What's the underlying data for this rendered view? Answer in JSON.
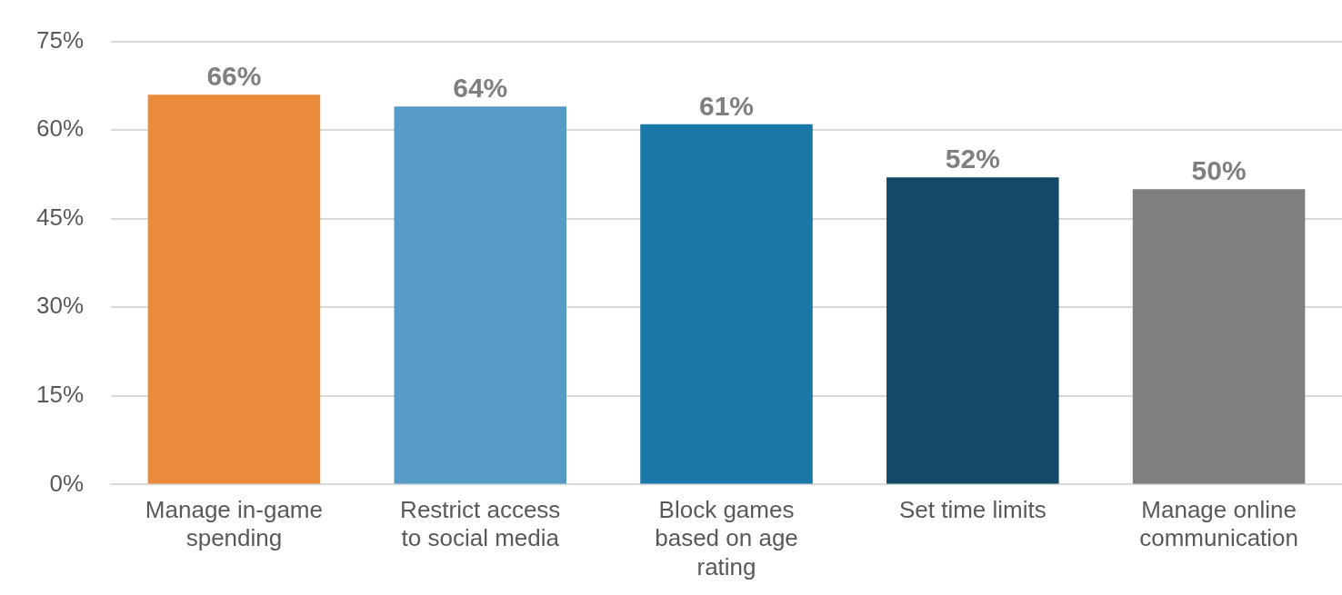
{
  "chart_data": {
    "type": "bar",
    "categories": [
      "Manage in-game spending",
      "Restrict access to social media",
      "Block games based on age rating",
      "Set time limits",
      "Manage online communication"
    ],
    "values": [
      66,
      64,
      61,
      52,
      50
    ],
    "colors": [
      "#e98b3a",
      "#559bc6",
      "#1a78a8",
      "#124a68",
      "#7f7f7f"
    ],
    "value_labels": [
      "66%",
      "64%",
      "61%",
      "52%",
      "50%"
    ],
    "ylim": [
      0,
      75
    ],
    "yticks": [
      {
        "value": 0,
        "label": "0%"
      },
      {
        "value": 15,
        "label": "15%"
      },
      {
        "value": 30,
        "label": "30%"
      },
      {
        "value": 45,
        "label": "45%"
      },
      {
        "value": 60,
        "label": "60%"
      },
      {
        "value": 75,
        "label": "75%"
      }
    ],
    "grid": "y",
    "legend": false
  }
}
